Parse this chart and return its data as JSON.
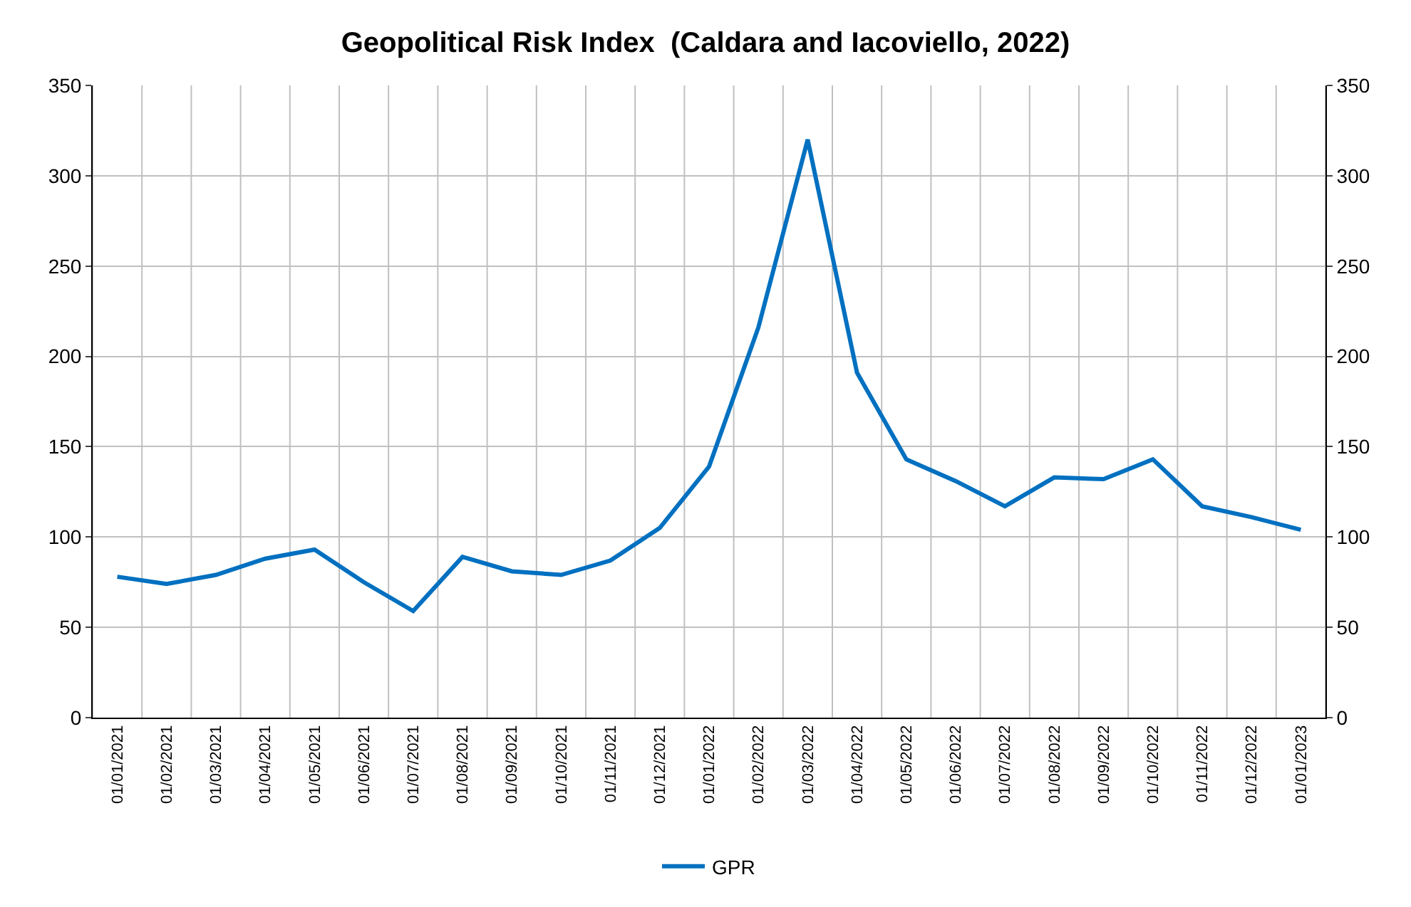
{
  "chart_data": {
    "type": "line",
    "title": "Geopolitical Risk Index  (Caldara and Iacoviello, 2022)",
    "categories": [
      "01/01/2021",
      "01/02/2021",
      "01/03/2021",
      "01/04/2021",
      "01/05/2021",
      "01/06/2021",
      "01/07/2021",
      "01/08/2021",
      "01/09/2021",
      "01/10/2021",
      "01/11/2021",
      "01/12/2021",
      "01/01/2022",
      "01/02/2022",
      "01/03/2022",
      "01/04/2022",
      "01/05/2022",
      "01/06/2022",
      "01/07/2022",
      "01/08/2022",
      "01/09/2022",
      "01/10/2022",
      "01/11/2022",
      "01/12/2022",
      "01/01/2023"
    ],
    "series": [
      {
        "name": "GPR",
        "color": "#0070c0",
        "values": [
          78,
          74,
          79,
          88,
          93,
          75,
          59,
          89,
          81,
          79,
          87,
          105,
          139,
          216,
          320,
          191,
          143,
          131,
          117,
          133,
          132,
          143,
          117,
          111,
          104
        ]
      }
    ],
    "ylim": [
      0,
      350
    ],
    "yticks": [
      0,
      50,
      100,
      150,
      200,
      250,
      300,
      350
    ],
    "y2lim": [
      0,
      350
    ],
    "y2ticks": [
      0,
      50,
      100,
      150,
      200,
      250,
      300,
      350
    ],
    "grid": true,
    "legend": "bottom",
    "marker": "none",
    "line_style": "solid"
  }
}
